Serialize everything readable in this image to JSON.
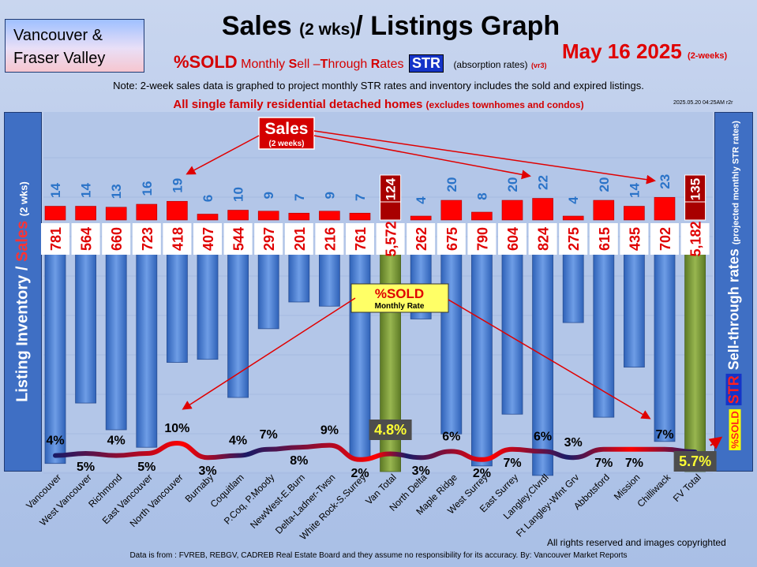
{
  "region": {
    "line1": "Vancouver &",
    "line2": "Fraser Valley"
  },
  "title": {
    "main": "Sales",
    "paren": "(2 wks)",
    "rest": "/ Listings Graph"
  },
  "date": {
    "main": "May 16 2025",
    "sub": "(2-weeks)"
  },
  "subtitle": {
    "sold": "%SOLD",
    "monthly": "Monthly",
    "s": "S",
    "ell": "ell –",
    "t": "T",
    "hrough": "hrough",
    "r": "R",
    "ates": "ates",
    "str": "STR",
    "absorption": "(absorption rates)",
    "version": "(vr3)"
  },
  "note": "Note: 2-week sales data is graphed to project monthly STR rates and inventory includes the sold and expired listings.",
  "note2": {
    "main": "All single family residential detached homes",
    "paren": "(excludes townhomes and condos)"
  },
  "timestamp": "2025.05.20 04:25AM r2r",
  "left_axis": {
    "part1": "Listing Inventory / ",
    "part2": "Sales",
    "part3": "(2 wks)"
  },
  "right_axis": {
    "sold": "%SOLD",
    "str": "STR",
    "text": "Sell-through rates",
    "sub": "(projected monthly STR rates)"
  },
  "callouts": {
    "sales": "Sales",
    "sales_sub": "(2 weeks)",
    "sold": "%SOLD",
    "sold_sub": "Monthly Rate"
  },
  "footer": {
    "rights": "All rights reserved and  images copyrighted",
    "source": "Data is from : FVREB, REBGV, CADREB Real Estate Board and they assume no responsibility for its accuracy. By: Vancouver Market Reports"
  },
  "colors": {
    "inventory": "#4f86d6",
    "sales": "#ff0000",
    "total": "#7a9a3a",
    "total_sales": "#a80000",
    "line_a": "#1a1a66",
    "line_b": "#ff0000"
  },
  "chart_data": {
    "type": "bar",
    "categories": [
      "Vancouver",
      "West Vancouver",
      "Richmond",
      "East Vancouver",
      "North Vancouver",
      "Burnaby",
      "Coquitlam",
      "P.Coq, P.Moody",
      "NewWest-E.Burn",
      "Delta-Ladner-Twsn",
      "White Rock-S.Surrey",
      "Van Total",
      "North Delta",
      "Maple Ridge",
      "West Surrey",
      "East Surrey",
      "Langley, Clvrdl",
      "Ft Langley-Wlnt Grv",
      "Abbotsford",
      "Mission",
      "Chilliwack",
      "FV Total"
    ],
    "category_labels": [
      "Vancouver",
      "West Vancouver",
      "Richmond",
      "East Vancouver",
      "North Vancouver",
      "Burnaby",
      "Coquitlam",
      "P.Coq, P.Moody",
      "NewWest-E.Burn",
      "Delta-Ladner-Twsn",
      "White Rock-S.Surrey",
      "Van Total",
      "North Delta",
      "Maple Ridge",
      "West Surrey",
      "East Surrey",
      "Langley,Clvrdl",
      "Ft Langley-Wlnt Grv",
      "Abbotsford",
      "Mission",
      "Chilliwack",
      "FV Total"
    ],
    "series": [
      {
        "name": "Listing Inventory",
        "values": [
          781,
          564,
          660,
          723,
          418,
          407,
          544,
          297,
          201,
          216,
          761,
          5572,
          262,
          675,
          790,
          604,
          824,
          275,
          615,
          435,
          702,
          5182
        ],
        "labels": [
          "781",
          "564",
          "660",
          "723",
          "418",
          "407",
          "544",
          "297",
          "201",
          "216",
          "761",
          "5,572",
          "262",
          "675",
          "790",
          "604",
          "824",
          "275",
          "615",
          "435",
          "702",
          "5,182"
        ]
      },
      {
        "name": "Sales",
        "values": [
          14,
          14,
          13,
          16,
          19,
          6,
          10,
          9,
          7,
          9,
          7,
          124,
          4,
          20,
          8,
          20,
          22,
          4,
          20,
          14,
          23,
          135
        ]
      },
      {
        "name": "%SOLD",
        "values": [
          4,
          5,
          4,
          5,
          10,
          3,
          4,
          7,
          8,
          9,
          2,
          4.8,
          3,
          6,
          2,
          7,
          6,
          3,
          7,
          7,
          7,
          5.7
        ],
        "labels": [
          "4%",
          "5%",
          "4%",
          "5%",
          "10%",
          "3%",
          "4%",
          "7%",
          "8%",
          "9%",
          "2%",
          "4.8%",
          "3%",
          "6%",
          "2%",
          "7%",
          "6%",
          "3%",
          "7%",
          "7%",
          "7%",
          "5.7%"
        ]
      }
    ]
  }
}
